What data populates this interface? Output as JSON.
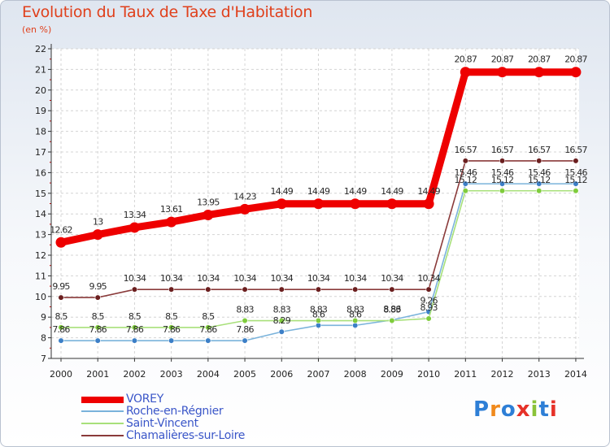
{
  "title": "Evolution du Taux de Taxe d'Habitation",
  "subtitle": "(en %)",
  "logo_text": "Proxiti",
  "logo_colors": [
    "#2e7fd6",
    "#f08a1c",
    "#2e7fd6",
    "#e63228",
    "#8bc33a",
    "#2e7fd6",
    "#e63228"
  ],
  "chart_data": {
    "type": "line",
    "title": "Evolution du Taux de Taxe d'Habitation",
    "ylabel": "(en %)",
    "xlabel": "",
    "x": [
      "2000",
      "2001",
      "2002",
      "2003",
      "2004",
      "2005",
      "2006",
      "2007",
      "2008",
      "2009",
      "2010",
      "2011",
      "2012",
      "2013",
      "2014"
    ],
    "ylim": [
      7,
      22
    ],
    "yticks": [
      "7",
      "8",
      "9",
      "10",
      "11",
      "12",
      "13",
      "14",
      "15",
      "16",
      "17",
      "18",
      "19",
      "20",
      "21",
      "22"
    ],
    "grid": true,
    "legend_position": "bottom-left",
    "series": [
      {
        "name": "VOREY",
        "color": "#ee0000",
        "marker": "#ee0000",
        "values": [
          12.62,
          13,
          13.34,
          13.61,
          13.95,
          14.23,
          14.49,
          14.49,
          14.49,
          14.49,
          14.49,
          20.87,
          20.87,
          20.87,
          20.87
        ],
        "labels": [
          "12.62",
          "13",
          "13.34",
          "13.61",
          "13.95",
          "14.23",
          "14.49",
          "14.49",
          "14.49",
          "14.49",
          "14.49",
          "20.87",
          "20.87",
          "20.87",
          "20.87"
        ]
      },
      {
        "name": "Roche-en-Régnier",
        "color": "#7ab3db",
        "marker": "#3c7fc7",
        "values": [
          7.86,
          7.86,
          7.86,
          7.86,
          7.86,
          7.86,
          8.29,
          8.6,
          8.6,
          8.86,
          9.26,
          15.46,
          15.46,
          15.46,
          15.46
        ],
        "labels": [
          "7.86",
          "7.86",
          "7.86",
          "7.86",
          "7.86",
          "7.86",
          "8.29",
          "8.6",
          "8.6",
          "8.86",
          "9.26",
          "15.46",
          "15.46",
          "15.46",
          "15.46"
        ]
      },
      {
        "name": "Saint-Vincent",
        "color": "#a8e07a",
        "marker": "#7fcc3c",
        "values": [
          8.5,
          8.5,
          8.5,
          8.5,
          8.5,
          8.83,
          8.83,
          8.83,
          8.83,
          8.83,
          8.93,
          15.12,
          15.12,
          15.12,
          15.12
        ],
        "labels": [
          "8.5",
          "8.5",
          "8.5",
          "8.5",
          "8.5",
          "8.83",
          "8.83",
          "8.83",
          "8.83",
          "8.83",
          "8.93",
          "15.12",
          "15.12",
          "15.12",
          "15.12"
        ]
      },
      {
        "name": "Chamalières-sur-Loire",
        "color": "#8a3a3a",
        "marker": "#6b1f1f",
        "values": [
          9.95,
          9.95,
          10.34,
          10.34,
          10.34,
          10.34,
          10.34,
          10.34,
          10.34,
          10.34,
          10.34,
          16.57,
          16.57,
          16.57,
          16.57
        ],
        "labels": [
          "9.95",
          "9.95",
          "10.34",
          "10.34",
          "10.34",
          "10.34",
          "10.34",
          "10.34",
          "10.34",
          "10.34",
          "10.34",
          "16.57",
          "16.57",
          "16.57",
          "16.57"
        ]
      }
    ]
  }
}
